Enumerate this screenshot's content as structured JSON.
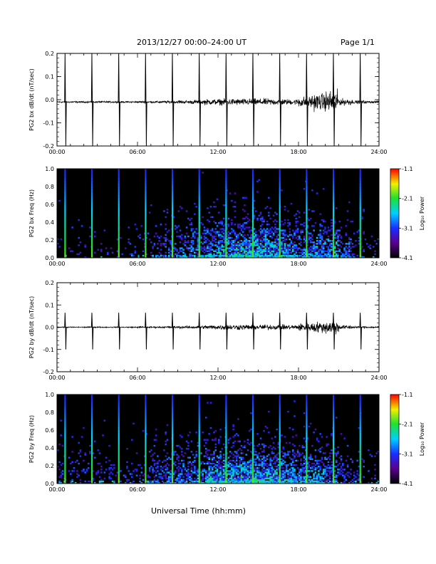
{
  "header": {
    "title": "2013/12/27  00:00–24:00 UT",
    "page": "Page 1/1"
  },
  "x_axis_title": "Universal Time (hh:mm)",
  "chart_data": [
    {
      "type": "line",
      "ylabel": "PG2 bx dB/dt (nT/sec)",
      "xlim_hours": [
        0,
        24
      ],
      "xtick_labels": [
        "00:00",
        "06:00",
        "12:00",
        "18:00",
        "24:00"
      ],
      "ylim": [
        -0.2,
        0.2
      ],
      "ytick_labels": [
        "0.2",
        "0.1",
        "0.0",
        "-0.1",
        "-0.2"
      ],
      "baseline": -0.01,
      "pulse_times_hours": [
        0.6,
        2.6,
        4.6,
        6.6,
        8.6,
        10.6,
        12.6,
        14.6,
        16.6,
        18.6,
        20.6,
        22.6
      ],
      "pulse_peak": 0.2,
      "pulse_trough": -0.2,
      "noise_amplitude_by_hour": [
        0.003,
        0.003,
        0.003,
        0.003,
        0.003,
        0.003,
        0.004,
        0.004,
        0.005,
        0.006,
        0.008,
        0.01,
        0.011,
        0.012,
        0.012,
        0.012,
        0.011,
        0.01,
        0.02,
        0.03,
        0.04,
        0.012,
        0.006,
        0.004
      ]
    },
    {
      "type": "heatmap",
      "ylabel": "PG2 bx Freq (Hz)",
      "xlim_hours": [
        0,
        24
      ],
      "xtick_labels": [
        "00:00",
        "06:00",
        "12:00",
        "18:00",
        "24:00"
      ],
      "ylim": [
        0,
        1.0
      ],
      "ytick_labels": [
        "1.0",
        "0.8",
        "0.6",
        "0.4",
        "0.2",
        "0.0"
      ],
      "colorbar": {
        "label": "Log₁₀ Power",
        "range": [
          -4.1,
          -1.1
        ],
        "tick_labels": [
          "-1.1",
          "-2.1",
          "-3.1",
          "-4.1"
        ]
      },
      "pulse_times_hours": [
        0.6,
        2.6,
        4.6,
        6.6,
        8.6,
        10.6,
        12.6,
        14.6,
        16.6,
        18.6,
        20.6,
        22.6
      ],
      "activity_by_hour": [
        0.05,
        0.05,
        0.05,
        0.05,
        0.05,
        0.1,
        0.15,
        0.25,
        0.35,
        0.45,
        0.55,
        0.75,
        0.85,
        0.95,
        0.95,
        0.9,
        0.8,
        0.7,
        0.6,
        0.7,
        0.6,
        0.4,
        0.2,
        0.1
      ],
      "activity_max_freq_hz": 0.4
    },
    {
      "type": "line",
      "ylabel": "PG2 by dB/dt (nT/sec)",
      "xlim_hours": [
        0,
        24
      ],
      "xtick_labels": [
        "00:00",
        "06:00",
        "12:00",
        "18:00",
        "24:00"
      ],
      "ylim": [
        -0.2,
        0.2
      ],
      "ytick_labels": [
        "0.2",
        "0.1",
        "0.0",
        "-0.1",
        "-0.2"
      ],
      "baseline": 0.0,
      "pulse_times_hours": [
        0.6,
        2.6,
        4.6,
        6.6,
        8.6,
        10.6,
        12.6,
        14.6,
        16.6,
        18.6,
        20.6,
        22.6
      ],
      "pulse_peak": 0.065,
      "pulse_trough": -0.1,
      "noise_amplitude_by_hour": [
        0.002,
        0.002,
        0.002,
        0.002,
        0.002,
        0.002,
        0.003,
        0.003,
        0.004,
        0.005,
        0.006,
        0.008,
        0.01,
        0.01,
        0.01,
        0.01,
        0.009,
        0.009,
        0.015,
        0.02,
        0.025,
        0.008,
        0.004,
        0.003
      ]
    },
    {
      "type": "heatmap",
      "ylabel": "PG2 by Freq (Hz)",
      "xlim_hours": [
        0,
        24
      ],
      "xtick_labels": [
        "00:00",
        "06:00",
        "12:00",
        "18:00",
        "24:00"
      ],
      "ylim": [
        0,
        1.0
      ],
      "ytick_labels": [
        "1.0",
        "0.8",
        "0.6",
        "0.4",
        "0.2",
        "0.0"
      ],
      "colorbar": {
        "label": "Log₁₀ Power",
        "range": [
          -4.1,
          -1.1
        ],
        "tick_labels": [
          "-1.1",
          "-2.1",
          "-3.1",
          "-4.1"
        ]
      },
      "pulse_times_hours": [
        0.6,
        2.6,
        4.6,
        6.6,
        8.6,
        10.6,
        12.6,
        14.6,
        16.6,
        18.6,
        20.6,
        22.6
      ],
      "activity_by_hour": [
        0.15,
        0.15,
        0.15,
        0.15,
        0.15,
        0.2,
        0.25,
        0.35,
        0.45,
        0.55,
        0.65,
        0.85,
        0.95,
        1.0,
        1.0,
        0.95,
        0.9,
        0.8,
        0.7,
        0.7,
        0.5,
        0.3,
        0.2,
        0.15
      ],
      "activity_max_freq_hz": 0.4
    }
  ]
}
